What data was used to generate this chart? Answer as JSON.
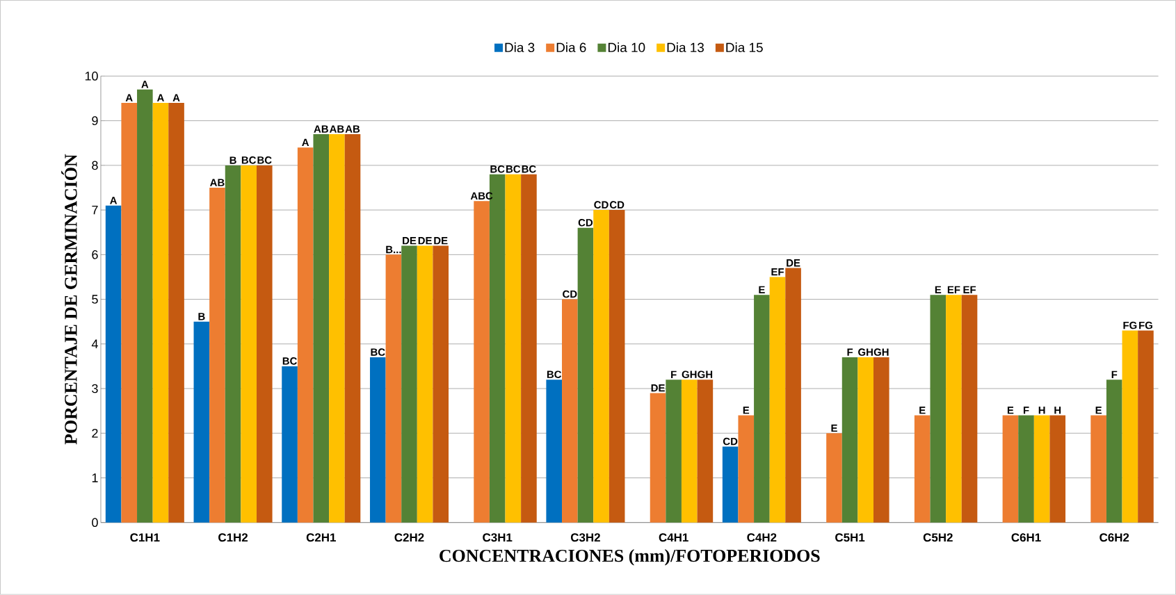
{
  "chart_data": {
    "type": "bar",
    "xlabel": "CONCENTRACIONES (mm)/FOTOPERIODOS",
    "ylabel": "PORCENTAJE DE GERMINACIÓN",
    "categories": [
      "C1H1",
      "C1H2",
      "C2H1",
      "C2H2",
      "C3H1",
      "C3H2",
      "C4H1",
      "C4H2",
      "C5H1",
      "C5H2",
      "C6H1",
      "C6H2"
    ],
    "series": [
      {
        "name": "Dia 3",
        "color": "#0070c0",
        "values": [
          7.1,
          4.5,
          3.5,
          3.7,
          null,
          3.2,
          null,
          1.7,
          null,
          null,
          null,
          null
        ],
        "value_labels": [
          "A",
          "B",
          "BC",
          "BC",
          null,
          "BC",
          null,
          "CD",
          null,
          null,
          null,
          null
        ]
      },
      {
        "name": "Dia 6",
        "color": "#ed7d31",
        "values": [
          9.4,
          7.5,
          8.4,
          6.0,
          7.2,
          5.0,
          2.9,
          2.4,
          2.0,
          2.4,
          2.4,
          2.4
        ],
        "value_labels": [
          "A",
          "AB",
          "A",
          "B...",
          "ABC",
          "CD",
          "DE",
          "E",
          "E",
          "E",
          "E",
          "E"
        ]
      },
      {
        "name": "Dia 10",
        "color": "#548235",
        "values": [
          9.7,
          8.0,
          8.7,
          6.2,
          7.8,
          6.6,
          3.2,
          5.1,
          3.7,
          5.1,
          2.4,
          3.2
        ],
        "value_labels": [
          "A",
          "B",
          "AB",
          "DE",
          "BC",
          "CD",
          "F",
          "E",
          "F",
          "E",
          "F",
          "F"
        ]
      },
      {
        "name": "Dia 13",
        "color": "#ffc000",
        "values": [
          9.4,
          8.0,
          8.7,
          6.2,
          7.8,
          7.0,
          3.2,
          5.5,
          3.7,
          5.1,
          2.4,
          4.3
        ],
        "value_labels": [
          "A",
          "BC",
          "AB",
          "DE",
          "BC",
          "CD",
          "GH",
          "EF",
          "GH",
          "EF",
          "H",
          "FG"
        ]
      },
      {
        "name": "Dia 15",
        "color": "#c55a11",
        "values": [
          9.4,
          8.0,
          8.7,
          6.2,
          7.8,
          7.0,
          3.2,
          5.7,
          3.7,
          5.1,
          2.4,
          4.3
        ],
        "value_labels": [
          "A",
          "BC",
          "AB",
          "DE",
          "BC",
          "CD",
          "GH",
          "DE",
          "GH",
          "EF",
          "H",
          "FG"
        ]
      }
    ],
    "ylim": [
      0,
      10
    ],
    "yticks": [
      0,
      1,
      2,
      3,
      4,
      5,
      6,
      7,
      8,
      9,
      10
    ],
    "grid": "y",
    "legend": "top"
  }
}
